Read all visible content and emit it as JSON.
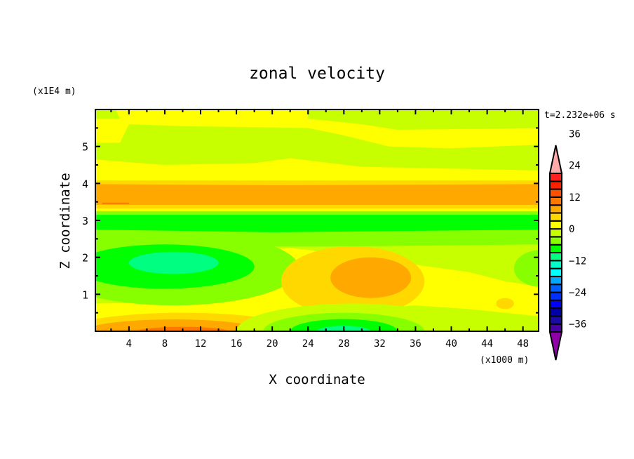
{
  "chart_data": {
    "type": "heatmap",
    "subtype": "filled-contour",
    "title": "zonal velocity",
    "xlabel": "X coordinate",
    "ylabel": "Z coordinate",
    "x_scale_label": "(x1000 m)",
    "y_scale_label": "(x1E4 m)",
    "time_label": "t=2.232e+06 s",
    "xlim": [
      0.25,
      49.75
    ],
    "ylim": [
      0,
      6
    ],
    "xticks": [
      4,
      8,
      12,
      16,
      20,
      24,
      28,
      32,
      36,
      40,
      44,
      48
    ],
    "yticks": [
      1,
      2,
      3,
      4,
      5
    ],
    "colorbar": {
      "levels_min": -39,
      "levels_step": 3,
      "colors": [
        "#4a00a8",
        "#1a0aa8",
        "#0000a8",
        "#0000ff",
        "#0030ff",
        "#0060ff",
        "#00a8ff",
        "#00ffff",
        "#00ffc8",
        "#00ff80",
        "#00ff00",
        "#88ff00",
        "#c8ff00",
        "#ffff00",
        "#ffd800",
        "#ffa800",
        "#ff7800",
        "#ff5000",
        "#ff2000",
        "#ff2020"
      ],
      "under_color": "#9000a8",
      "over_color": "#ffaaaa",
      "tick_values": [
        -36,
        -24,
        -12,
        0,
        12,
        24,
        36
      ],
      "tick_labels": [
        "−36",
        "−24",
        "−12",
        "0",
        "12",
        "24",
        "36"
      ]
    },
    "base_value": -1.5,
    "regions": [
      {
        "kind": "poly",
        "value": 1.5,
        "points": [
          [
            0,
            5.75
          ],
          [
            3,
            5.75
          ],
          [
            2.5,
            6
          ],
          [
            24,
            6
          ],
          [
            24,
            5.75
          ],
          [
            30,
            5.6
          ],
          [
            34,
            5.45
          ],
          [
            50,
            5.5
          ],
          [
            50,
            5.05
          ],
          [
            40,
            4.95
          ],
          [
            33,
            5.0
          ],
          [
            28,
            5.3
          ],
          [
            24,
            5.5
          ],
          [
            10,
            5.55
          ],
          [
            4,
            5.6
          ],
          [
            3,
            5.1
          ],
          [
            0,
            5.1
          ]
        ]
      },
      {
        "kind": "poly",
        "value": 1.5,
        "points": [
          [
            0,
            4.65
          ],
          [
            8,
            4.5
          ],
          [
            18,
            4.55
          ],
          [
            22,
            4.68
          ],
          [
            30,
            4.45
          ],
          [
            40,
            4.4
          ],
          [
            50,
            4.35
          ],
          [
            50,
            4.0
          ],
          [
            0,
            4.0
          ]
        ]
      },
      {
        "kind": "poly",
        "value": 4.5,
        "points": [
          [
            0,
            4.08
          ],
          [
            50,
            4.08
          ],
          [
            50,
            3.3
          ],
          [
            0,
            3.3
          ]
        ]
      },
      {
        "kind": "poly",
        "value": 7.5,
        "points": [
          [
            0,
            3.98
          ],
          [
            20,
            3.95
          ],
          [
            50,
            3.98
          ],
          [
            50,
            3.42
          ],
          [
            0,
            3.42
          ]
        ]
      },
      {
        "kind": "poly",
        "value": 10.5,
        "points": [
          [
            1,
            3.48
          ],
          [
            4,
            3.48
          ],
          [
            4,
            3.44
          ],
          [
            1,
            3.44
          ]
        ]
      },
      {
        "kind": "poly",
        "value": 1.5,
        "points": [
          [
            0,
            3.32
          ],
          [
            50,
            3.32
          ],
          [
            50,
            3.25
          ],
          [
            0,
            3.25
          ]
        ]
      },
      {
        "kind": "poly",
        "value": -4.5,
        "points": [
          [
            0,
            3.25
          ],
          [
            50,
            3.25
          ],
          [
            50,
            2.35
          ],
          [
            30,
            2.3
          ],
          [
            0,
            2.3
          ]
        ]
      },
      {
        "kind": "poly",
        "value": -7.5,
        "points": [
          [
            0,
            3.15
          ],
          [
            50,
            3.15
          ],
          [
            50,
            2.75
          ],
          [
            20,
            2.68
          ],
          [
            0,
            2.75
          ]
        ]
      },
      {
        "kind": "poly",
        "value": 1.5,
        "points": [
          [
            0,
            0.75
          ],
          [
            14,
            0.8
          ],
          [
            17,
            1.2
          ],
          [
            19,
            2.2
          ],
          [
            22,
            2.25
          ],
          [
            28,
            2.1
          ],
          [
            36,
            1.8
          ],
          [
            42,
            1.6
          ],
          [
            46,
            1.35
          ],
          [
            50,
            1.2
          ],
          [
            50,
            0.4
          ],
          [
            44,
            0.55
          ],
          [
            42,
            0.6
          ],
          [
            36,
            0.7
          ],
          [
            30,
            0.6
          ],
          [
            22,
            0.55
          ],
          [
            19,
            0
          ],
          [
            15,
            0
          ],
          [
            13,
            0.25
          ],
          [
            0,
            0.3
          ]
        ]
      },
      {
        "kind": "ellipse",
        "value": -4.5,
        "cx": 9,
        "cz": 1.7,
        "rx": 14,
        "rz": 1.0
      },
      {
        "kind": "ellipse",
        "value": -7.5,
        "cx": 8,
        "cz": 1.75,
        "rx": 10,
        "rz": 0.6
      },
      {
        "kind": "ellipse",
        "value": -10.5,
        "cx": 9,
        "cz": 1.85,
        "rx": 5,
        "rz": 0.3
      },
      {
        "kind": "ellipse",
        "value": 4.5,
        "cx": 10,
        "cz": 0,
        "rx": 13,
        "rz": 0.5
      },
      {
        "kind": "ellipse",
        "value": 7.5,
        "cx": 9,
        "cz": 0,
        "rx": 10,
        "rz": 0.32
      },
      {
        "kind": "ellipse",
        "value": 10.5,
        "cx": 10,
        "cz": 0,
        "rx": 5,
        "rz": 0.12
      },
      {
        "kind": "ellipse",
        "value": 4.5,
        "cx": 29,
        "cz": 1.35,
        "rx": 8,
        "rz": 0.95
      },
      {
        "kind": "ellipse",
        "value": 7.5,
        "cx": 31,
        "cz": 1.45,
        "rx": 4.5,
        "rz": 0.55
      },
      {
        "kind": "ellipse",
        "value": -1.5,
        "cx": 29,
        "cz": 0,
        "rx": 13,
        "rz": 0.75
      },
      {
        "kind": "ellipse",
        "value": -4.5,
        "cx": 28,
        "cz": 0,
        "rx": 9,
        "rz": 0.5
      },
      {
        "kind": "ellipse",
        "value": -7.5,
        "cx": 28,
        "cz": 0,
        "rx": 6,
        "rz": 0.33
      },
      {
        "kind": "ellipse",
        "value": -10.5,
        "cx": 28,
        "cz": 0,
        "rx": 3,
        "rz": 0.15
      },
      {
        "kind": "ellipse",
        "value": -4.5,
        "cx": 50,
        "cz": 1.7,
        "rx": 3,
        "rz": 0.5
      },
      {
        "kind": "ellipse",
        "value": 4.5,
        "cx": 46,
        "cz": 0.75,
        "rx": 1,
        "rz": 0.15
      }
    ]
  }
}
